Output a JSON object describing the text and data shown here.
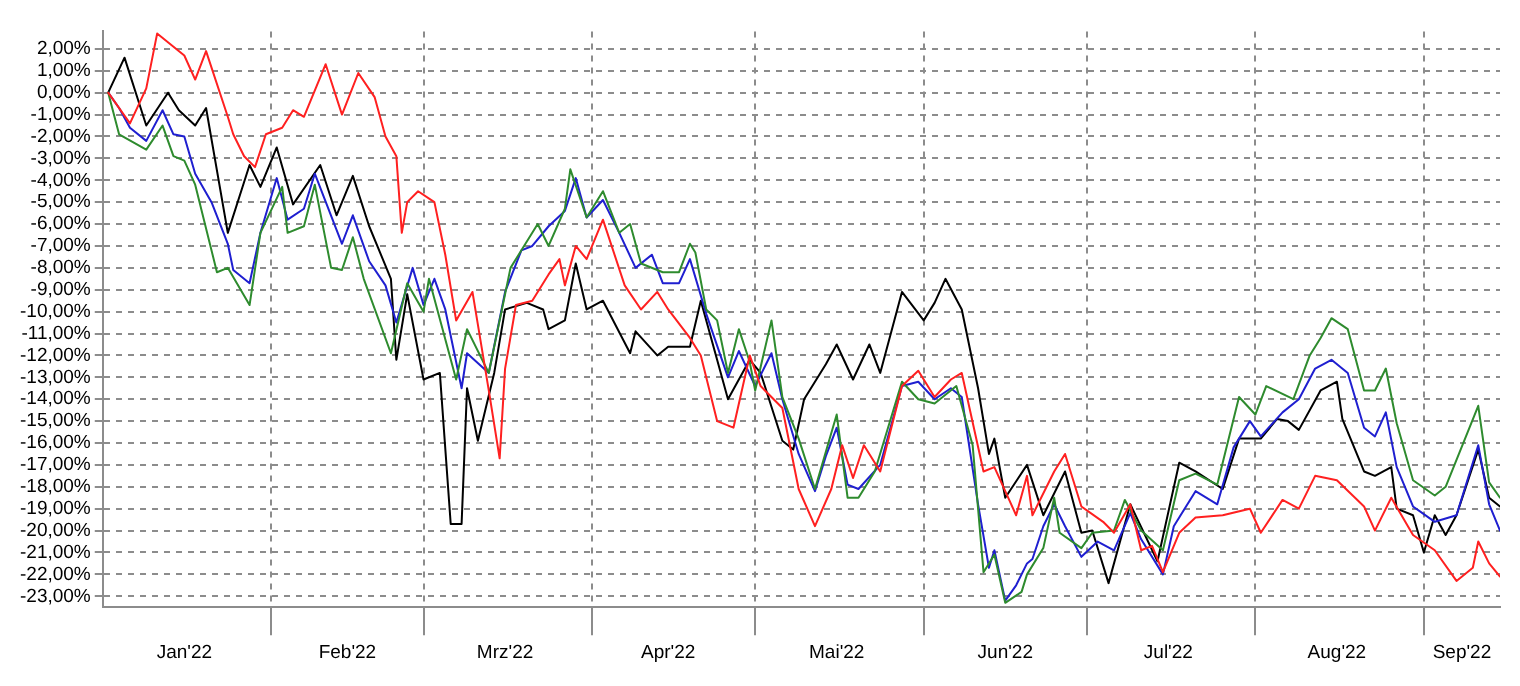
{
  "chart_data": {
    "type": "line",
    "xlim": [
      "2022-01-01",
      "2022-09-15"
    ],
    "xticks": [
      {
        "value": "2022-02-01",
        "label": null
      },
      {
        "value": "2022-03-01",
        "label": null
      },
      {
        "value": "2022-04-01",
        "label": null
      },
      {
        "value": "2022-05-01",
        "label": null
      },
      {
        "value": "2022-06-01",
        "label": null
      },
      {
        "value": "2022-07-01",
        "label": null
      },
      {
        "value": "2022-08-01",
        "label": null
      },
      {
        "value": "2022-09-01",
        "label": null
      },
      {
        "value": "2022-01-16",
        "label": "Jan'22"
      },
      {
        "value": "2022-02-15",
        "label": "Feb'22"
      },
      {
        "value": "2022-03-16",
        "label": "Mrz'22"
      },
      {
        "value": "2022-04-15",
        "label": "Apr'22"
      },
      {
        "value": "2022-05-16",
        "label": "Mai'22"
      },
      {
        "value": "2022-06-16",
        "label": "Jun'22"
      },
      {
        "value": "2022-07-16",
        "label": "Jul'22"
      },
      {
        "value": "2022-08-16",
        "label": "Aug'22"
      },
      {
        "value": "2022-09-08",
        "label": "Sep'22"
      }
    ],
    "ylim": [
      -23.5,
      2.8
    ],
    "yticks": [
      {
        "value": 2,
        "label": "2,00%"
      },
      {
        "value": 1,
        "label": "1,00%"
      },
      {
        "value": 0,
        "label": "0,00%"
      },
      {
        "value": -1,
        "label": "-1,00%"
      },
      {
        "value": -2,
        "label": "-2,00%"
      },
      {
        "value": -3,
        "label": "-3,00%"
      },
      {
        "value": -4,
        "label": "-4,00%"
      },
      {
        "value": -5,
        "label": "-5,00%"
      },
      {
        "value": -6,
        "label": "-6,00%"
      },
      {
        "value": -7,
        "label": "-7,00%"
      },
      {
        "value": -8,
        "label": "-8,00%"
      },
      {
        "value": -9,
        "label": "-9,00%"
      },
      {
        "value": -10,
        "label": "-10,00%"
      },
      {
        "value": -11,
        "label": "-11,00%"
      },
      {
        "value": -12,
        "label": "-12,00%"
      },
      {
        "value": -13,
        "label": "-13,00%"
      },
      {
        "value": -14,
        "label": "-14,00%"
      },
      {
        "value": -15,
        "label": "-15,00%"
      },
      {
        "value": -16,
        "label": "-16,00%"
      },
      {
        "value": -17,
        "label": "-17,00%"
      },
      {
        "value": -18,
        "label": "-18,00%"
      },
      {
        "value": -19,
        "label": "-19,00%"
      },
      {
        "value": -20,
        "label": "-20,00%"
      },
      {
        "value": -21,
        "label": "-21,00%"
      },
      {
        "value": -22,
        "label": "-22,00%"
      },
      {
        "value": -23,
        "label": "-23,00%"
      }
    ],
    "grid": true,
    "legend": false,
    "marker": "none",
    "line_style": "solid",
    "series": [
      {
        "color": "#ff2020",
        "x": [
          "2022-01-02",
          "2022-01-06",
          "2022-01-09",
          "2022-01-11",
          "2022-01-16",
          "2022-01-18",
          "2022-01-20",
          "2022-01-24",
          "2022-01-25",
          "2022-01-27",
          "2022-01-29",
          "2022-01-31",
          "2022-02-03",
          "2022-02-05",
          "2022-02-07",
          "2022-02-11",
          "2022-02-14",
          "2022-02-17",
          "2022-02-20",
          "2022-02-22",
          "2022-02-24",
          "2022-02-25",
          "2022-02-26",
          "2022-02-28",
          "2022-03-03",
          "2022-03-05",
          "2022-03-07",
          "2022-03-10",
          "2022-03-13",
          "2022-03-15",
          "2022-03-16",
          "2022-03-18",
          "2022-03-21",
          "2022-03-24",
          "2022-03-26",
          "2022-03-27",
          "2022-03-29",
          "2022-03-31",
          "2022-04-03",
          "2022-04-07",
          "2022-04-10",
          "2022-04-13",
          "2022-04-15",
          "2022-04-19",
          "2022-04-21",
          "2022-04-24",
          "2022-04-27",
          "2022-04-30",
          "2022-05-02",
          "2022-05-06",
          "2022-05-09",
          "2022-05-12",
          "2022-05-15",
          "2022-05-17",
          "2022-05-19",
          "2022-05-21",
          "2022-05-24",
          "2022-05-28",
          "2022-05-31",
          "2022-06-03",
          "2022-06-06",
          "2022-06-08",
          "2022-06-12",
          "2022-06-14",
          "2022-06-18",
          "2022-06-20",
          "2022-06-21",
          "2022-06-25",
          "2022-06-27",
          "2022-06-30",
          "2022-07-04",
          "2022-07-06",
          "2022-07-09",
          "2022-07-11",
          "2022-07-13",
          "2022-07-15",
          "2022-07-18",
          "2022-07-21",
          "2022-07-26",
          "2022-07-31",
          "2022-08-02",
          "2022-08-06",
          "2022-08-09",
          "2022-08-12",
          "2022-08-16",
          "2022-08-21",
          "2022-08-23",
          "2022-08-26",
          "2022-08-30",
          "2022-09-03",
          "2022-09-07",
          "2022-09-10",
          "2022-09-11",
          "2022-09-13",
          "2022-09-15"
        ],
        "values": [
          0,
          -1.4,
          0.2,
          2.7,
          1.7,
          0.6,
          1.9,
          -1.1,
          -1.9,
          -2.9,
          -3.4,
          -1.9,
          -1.6,
          -0.8,
          -1.1,
          1.3,
          -1.0,
          0.9,
          -0.2,
          -2.0,
          -2.9,
          -6.4,
          -5.0,
          -4.5,
          -5.0,
          -7.4,
          -10.4,
          -9.1,
          -13.6,
          -16.7,
          -12.6,
          -9.7,
          -9.5,
          -8.3,
          -7.6,
          -8.8,
          -7.0,
          -7.6,
          -5.8,
          -8.8,
          -9.9,
          -9.1,
          -9.9,
          -11.2,
          -12.0,
          -15.0,
          -15.3,
          -12.0,
          -13.4,
          -14.4,
          -18.1,
          -19.8,
          -18.1,
          -16.1,
          -17.6,
          -16.1,
          -17.3,
          -13.4,
          -12.7,
          -13.9,
          -13.1,
          -12.8,
          -17.3,
          -17.1,
          -19.3,
          -17.5,
          -19.3,
          -17.3,
          -16.5,
          -18.9,
          -19.6,
          -20.1,
          -18.8,
          -20.9,
          -20.7,
          -21.9,
          -20.1,
          -19.4,
          -19.3,
          -19.0,
          -20.1,
          -18.6,
          -19.0,
          -17.5,
          -17.7,
          -18.9,
          -20.0,
          -18.5,
          -20.2,
          -20.9,
          -22.3,
          -21.7,
          -20.5,
          -21.5,
          -22.1
        ]
      },
      {
        "color": "#2e8b2e",
        "x": [
          "2022-01-02",
          "2022-01-04",
          "2022-01-09",
          "2022-01-12",
          "2022-01-14",
          "2022-01-16",
          "2022-01-18",
          "2022-01-22",
          "2022-01-24",
          "2022-01-28",
          "2022-01-30",
          "2022-02-03",
          "2022-02-04",
          "2022-02-07",
          "2022-02-09",
          "2022-02-12",
          "2022-02-14",
          "2022-02-16",
          "2022-02-18",
          "2022-02-23",
          "2022-02-26",
          "2022-03-01",
          "2022-03-02",
          "2022-03-07",
          "2022-03-09",
          "2022-03-13",
          "2022-03-17",
          "2022-03-19",
          "2022-03-22",
          "2022-03-24",
          "2022-03-27",
          "2022-03-28",
          "2022-03-31",
          "2022-04-03",
          "2022-04-06",
          "2022-04-08",
          "2022-04-10",
          "2022-04-13",
          "2022-04-14",
          "2022-04-17",
          "2022-04-19",
          "2022-04-20",
          "2022-04-22",
          "2022-04-24",
          "2022-04-26",
          "2022-04-28",
          "2022-04-30",
          "2022-05-01",
          "2022-05-04",
          "2022-05-06",
          "2022-05-09",
          "2022-05-12",
          "2022-05-16",
          "2022-05-18",
          "2022-05-20",
          "2022-05-23",
          "2022-05-28",
          "2022-05-31",
          "2022-06-03",
          "2022-06-07",
          "2022-06-10",
          "2022-06-12",
          "2022-06-14",
          "2022-06-16",
          "2022-06-19",
          "2022-06-20",
          "2022-06-23",
          "2022-06-25",
          "2022-06-26",
          "2022-06-30",
          "2022-07-02",
          "2022-07-06",
          "2022-07-08",
          "2022-07-11",
          "2022-07-15",
          "2022-07-18",
          "2022-07-21",
          "2022-07-25",
          "2022-07-29",
          "2022-08-01",
          "2022-08-03",
          "2022-08-08",
          "2022-08-11",
          "2022-08-13",
          "2022-08-15",
          "2022-08-18",
          "2022-08-21",
          "2022-08-23",
          "2022-08-25",
          "2022-08-27",
          "2022-08-30",
          "2022-09-03",
          "2022-09-05",
          "2022-09-11",
          "2022-09-13",
          "2022-09-15"
        ],
        "values": [
          0,
          -1.9,
          -2.6,
          -1.5,
          -2.9,
          -3.1,
          -4.2,
          -8.2,
          -8.0,
          -9.7,
          -6.4,
          -4.3,
          -6.4,
          -6.1,
          -4.2,
          -8.0,
          -8.1,
          -6.6,
          -8.5,
          -11.9,
          -8.7,
          -10.0,
          -8.5,
          -13.1,
          -10.8,
          -12.8,
          -8.0,
          -7.2,
          -6.0,
          -7.0,
          -5.3,
          -3.5,
          -5.7,
          -4.5,
          -6.4,
          -6.0,
          -7.8,
          -8.1,
          -8.2,
          -8.2,
          -6.9,
          -7.3,
          -9.9,
          -10.4,
          -12.8,
          -10.8,
          -12.3,
          -13.6,
          -10.4,
          -13.9,
          -15.8,
          -18.1,
          -14.7,
          -18.5,
          -18.5,
          -17.3,
          -13.2,
          -14.0,
          -14.2,
          -13.4,
          -16.1,
          -21.9,
          -21.1,
          -23.3,
          -22.8,
          -22.0,
          -20.8,
          -18.5,
          -20.1,
          -20.8,
          -20.1,
          -20.0,
          -18.6,
          -20.0,
          -20.9,
          -17.7,
          -17.4,
          -17.9,
          -13.9,
          -14.7,
          -13.4,
          -14.0,
          -12.0,
          -11.2,
          -10.3,
          -10.8,
          -13.6,
          -13.6,
          -12.6,
          -15.1,
          -17.7,
          -18.4,
          -18.0,
          -14.3,
          -17.8,
          -18.5
        ]
      },
      {
        "color": "#1f1fd0",
        "x": [
          "2022-01-02",
          "2022-01-04",
          "2022-01-06",
          "2022-01-09",
          "2022-01-12",
          "2022-01-14",
          "2022-01-16",
          "2022-01-18",
          "2022-01-21",
          "2022-01-24",
          "2022-01-25",
          "2022-01-28",
          "2022-01-30",
          "2022-02-02",
          "2022-02-04",
          "2022-02-07",
          "2022-02-09",
          "2022-02-14",
          "2022-02-16",
          "2022-02-19",
          "2022-02-22",
          "2022-02-24",
          "2022-02-27",
          "2022-03-01",
          "2022-03-03",
          "2022-03-05",
          "2022-03-08",
          "2022-03-09",
          "2022-03-13",
          "2022-03-16",
          "2022-03-19",
          "2022-03-21",
          "2022-03-24",
          "2022-03-27",
          "2022-03-29",
          "2022-03-31",
          "2022-04-03",
          "2022-04-06",
          "2022-04-09",
          "2022-04-12",
          "2022-04-14",
          "2022-04-17",
          "2022-04-19",
          "2022-04-22",
          "2022-04-26",
          "2022-04-28",
          "2022-05-01",
          "2022-05-04",
          "2022-05-06",
          "2022-05-09",
          "2022-05-12",
          "2022-05-14",
          "2022-05-16",
          "2022-05-18",
          "2022-05-20",
          "2022-05-24",
          "2022-05-28",
          "2022-05-31",
          "2022-06-03",
          "2022-06-06",
          "2022-06-08",
          "2022-06-11",
          "2022-06-13",
          "2022-06-14",
          "2022-06-16",
          "2022-06-18",
          "2022-06-20",
          "2022-06-21",
          "2022-06-23",
          "2022-06-25",
          "2022-06-27",
          "2022-06-30",
          "2022-07-03",
          "2022-07-06",
          "2022-07-09",
          "2022-07-11",
          "2022-07-15",
          "2022-07-17",
          "2022-07-21",
          "2022-07-25",
          "2022-07-28",
          "2022-07-31",
          "2022-08-02",
          "2022-08-06",
          "2022-08-09",
          "2022-08-12",
          "2022-08-15",
          "2022-08-18",
          "2022-08-21",
          "2022-08-23",
          "2022-08-25",
          "2022-08-27",
          "2022-08-30",
          "2022-09-03",
          "2022-09-07",
          "2022-09-11",
          "2022-09-13",
          "2022-09-15"
        ],
        "values": [
          0,
          -0.7,
          -1.6,
          -2.2,
          -0.8,
          -1.9,
          -2.0,
          -3.7,
          -5.0,
          -6.9,
          -8.1,
          -8.7,
          -6.4,
          -3.9,
          -5.8,
          -5.3,
          -3.7,
          -6.9,
          -5.6,
          -7.7,
          -8.8,
          -10.5,
          -8.0,
          -9.7,
          -8.5,
          -9.9,
          -13.5,
          -11.9,
          -12.8,
          -9.1,
          -7.2,
          -7.0,
          -6.1,
          -5.4,
          -3.9,
          -5.7,
          -4.9,
          -6.4,
          -8.0,
          -7.4,
          -8.7,
          -8.7,
          -7.6,
          -10.1,
          -13.0,
          -11.8,
          -13.4,
          -11.9,
          -14.0,
          -16.5,
          -18.2,
          -16.6,
          -15.3,
          -17.9,
          -18.1,
          -17.0,
          -13.4,
          -13.2,
          -14.0,
          -13.5,
          -13.9,
          -18.8,
          -21.7,
          -20.9,
          -23.2,
          -22.5,
          -21.5,
          -21.3,
          -19.8,
          -18.8,
          -19.8,
          -21.2,
          -20.5,
          -20.9,
          -19.2,
          -20.4,
          -22.0,
          -19.8,
          -18.2,
          -18.8,
          -16.2,
          -15.0,
          -15.7,
          -14.6,
          -14.0,
          -12.6,
          -12.2,
          -12.8,
          -15.3,
          -15.7,
          -14.6,
          -17.1,
          -18.9,
          -19.6,
          -19.3,
          -16.1,
          -18.8,
          -20.0
        ]
      },
      {
        "color": "#000000",
        "x": [
          "2022-01-02",
          "2022-01-05",
          "2022-01-09",
          "2022-01-13",
          "2022-01-15",
          "2022-01-18",
          "2022-01-20",
          "2022-01-24",
          "2022-01-28",
          "2022-01-30",
          "2022-02-02",
          "2022-02-05",
          "2022-02-10",
          "2022-02-13",
          "2022-02-16",
          "2022-02-19",
          "2022-02-23",
          "2022-02-24",
          "2022-02-26",
          "2022-03-01",
          "2022-03-04",
          "2022-03-06",
          "2022-03-08",
          "2022-03-09",
          "2022-03-11",
          "2022-03-14",
          "2022-03-16",
          "2022-03-20",
          "2022-03-23",
          "2022-03-24",
          "2022-03-27",
          "2022-03-29",
          "2022-03-31",
          "2022-04-03",
          "2022-04-08",
          "2022-04-09",
          "2022-04-13",
          "2022-04-15",
          "2022-04-19",
          "2022-04-21",
          "2022-04-24",
          "2022-04-26",
          "2022-04-30",
          "2022-05-02",
          "2022-05-06",
          "2022-05-08",
          "2022-05-10",
          "2022-05-14",
          "2022-05-16",
          "2022-05-19",
          "2022-05-22",
          "2022-05-24",
          "2022-05-28",
          "2022-06-01",
          "2022-06-03",
          "2022-06-05",
          "2022-06-08",
          "2022-06-11",
          "2022-06-13",
          "2022-06-14",
          "2022-06-16",
          "2022-06-20",
          "2022-06-23",
          "2022-06-27",
          "2022-06-30",
          "2022-07-02",
          "2022-07-05",
          "2022-07-09",
          "2022-07-14",
          "2022-07-18",
          "2022-07-21",
          "2022-07-26",
          "2022-07-29",
          "2022-08-02",
          "2022-08-05",
          "2022-08-07",
          "2022-08-09",
          "2022-08-13",
          "2022-08-16",
          "2022-08-17",
          "2022-08-21",
          "2022-08-23",
          "2022-08-26",
          "2022-08-27",
          "2022-08-30",
          "2022-09-01",
          "2022-09-03",
          "2022-09-05",
          "2022-09-07",
          "2022-09-11",
          "2022-09-13",
          "2022-09-15"
        ],
        "values": [
          0,
          1.6,
          -1.5,
          0,
          -0.8,
          -1.5,
          -0.7,
          -6.4,
          -3.3,
          -4.3,
          -2.5,
          -5.1,
          -3.3,
          -5.6,
          -3.8,
          -6.1,
          -8.5,
          -12.2,
          -9.2,
          -13.1,
          -12.8,
          -19.7,
          -19.7,
          -13.5,
          -15.9,
          -12.8,
          -9.9,
          -9.6,
          -9.9,
          -10.8,
          -10.4,
          -7.8,
          -9.9,
          -9.5,
          -11.9,
          -10.9,
          -12.0,
          -11.6,
          -11.6,
          -9.5,
          -12.2,
          -14.0,
          -12.2,
          -12.8,
          -15.9,
          -16.3,
          -14.0,
          -12.4,
          -11.5,
          -13.1,
          -11.5,
          -12.8,
          -9.1,
          -10.4,
          -9.6,
          -8.5,
          -9.9,
          -13.5,
          -16.5,
          -15.8,
          -18.5,
          -17.0,
          -19.3,
          -17.3,
          -20.1,
          -20.0,
          -22.4,
          -18.8,
          -21.4,
          -16.9,
          -17.3,
          -18.1,
          -15.8,
          -15.8,
          -14.9,
          -15.0,
          -15.4,
          -13.6,
          -13.2,
          -14.9,
          -17.3,
          -17.5,
          -17.1,
          -19.0,
          -19.3,
          -21.0,
          -19.3,
          -20.2,
          -19.3,
          -16.3,
          -18.5,
          -18.9
        ]
      }
    ]
  }
}
